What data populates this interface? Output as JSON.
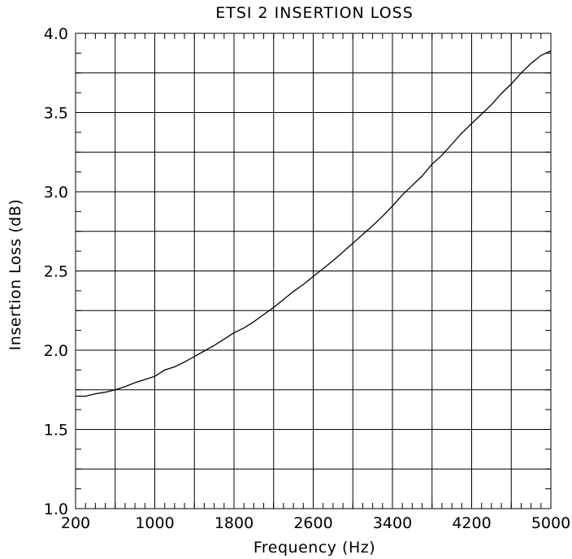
{
  "chart_data": {
    "type": "line",
    "title": "ETSI 2 INSERTION LOSS",
    "xlabel": "Frequency (Hz)",
    "ylabel": "Insertion Loss (dB)",
    "xlim": [
      200,
      5000
    ],
    "ylim": [
      1.0,
      4.0
    ],
    "x_ticks": [
      200,
      1000,
      1800,
      2600,
      3400,
      4200,
      5000
    ],
    "x_ticklabels": [
      "200",
      "1000",
      "1800",
      "2600",
      "3400",
      "4200",
      "5000"
    ],
    "y_ticks": [
      1.0,
      1.5,
      2.0,
      2.5,
      3.0,
      3.5,
      4.0
    ],
    "y_ticklabels": [
      "1.0",
      "1.5",
      "2.0",
      "2.5",
      "3.0",
      "3.5",
      "4.0"
    ],
    "grid": true,
    "series": [
      {
        "x": [
          200,
          300,
          400,
          500,
          600,
          700,
          800,
          900,
          1000,
          1100,
          1200,
          1300,
          1400,
          1500,
          1600,
          1700,
          1800,
          1900,
          2000,
          2100,
          2200,
          2300,
          2400,
          2500,
          2600,
          2700,
          2800,
          2900,
          3000,
          3100,
          3200,
          3300,
          3400,
          3500,
          3600,
          3700,
          3800,
          3900,
          4000,
          4100,
          4200,
          4300,
          4400,
          4500,
          4600,
          4700,
          4800,
          4900,
          5000
        ],
        "y": [
          1.71,
          1.71,
          1.725,
          1.735,
          1.75,
          1.77,
          1.795,
          1.815,
          1.835,
          1.875,
          1.895,
          1.925,
          1.96,
          1.995,
          2.03,
          2.07,
          2.11,
          2.14,
          2.18,
          2.225,
          2.27,
          2.32,
          2.37,
          2.415,
          2.465,
          2.515,
          2.565,
          2.62,
          2.675,
          2.73,
          2.785,
          2.845,
          2.91,
          2.98,
          3.04,
          3.1,
          3.175,
          3.23,
          3.3,
          3.37,
          3.43,
          3.49,
          3.55,
          3.62,
          3.68,
          3.75,
          3.81,
          3.86,
          3.89
        ]
      }
    ]
  }
}
